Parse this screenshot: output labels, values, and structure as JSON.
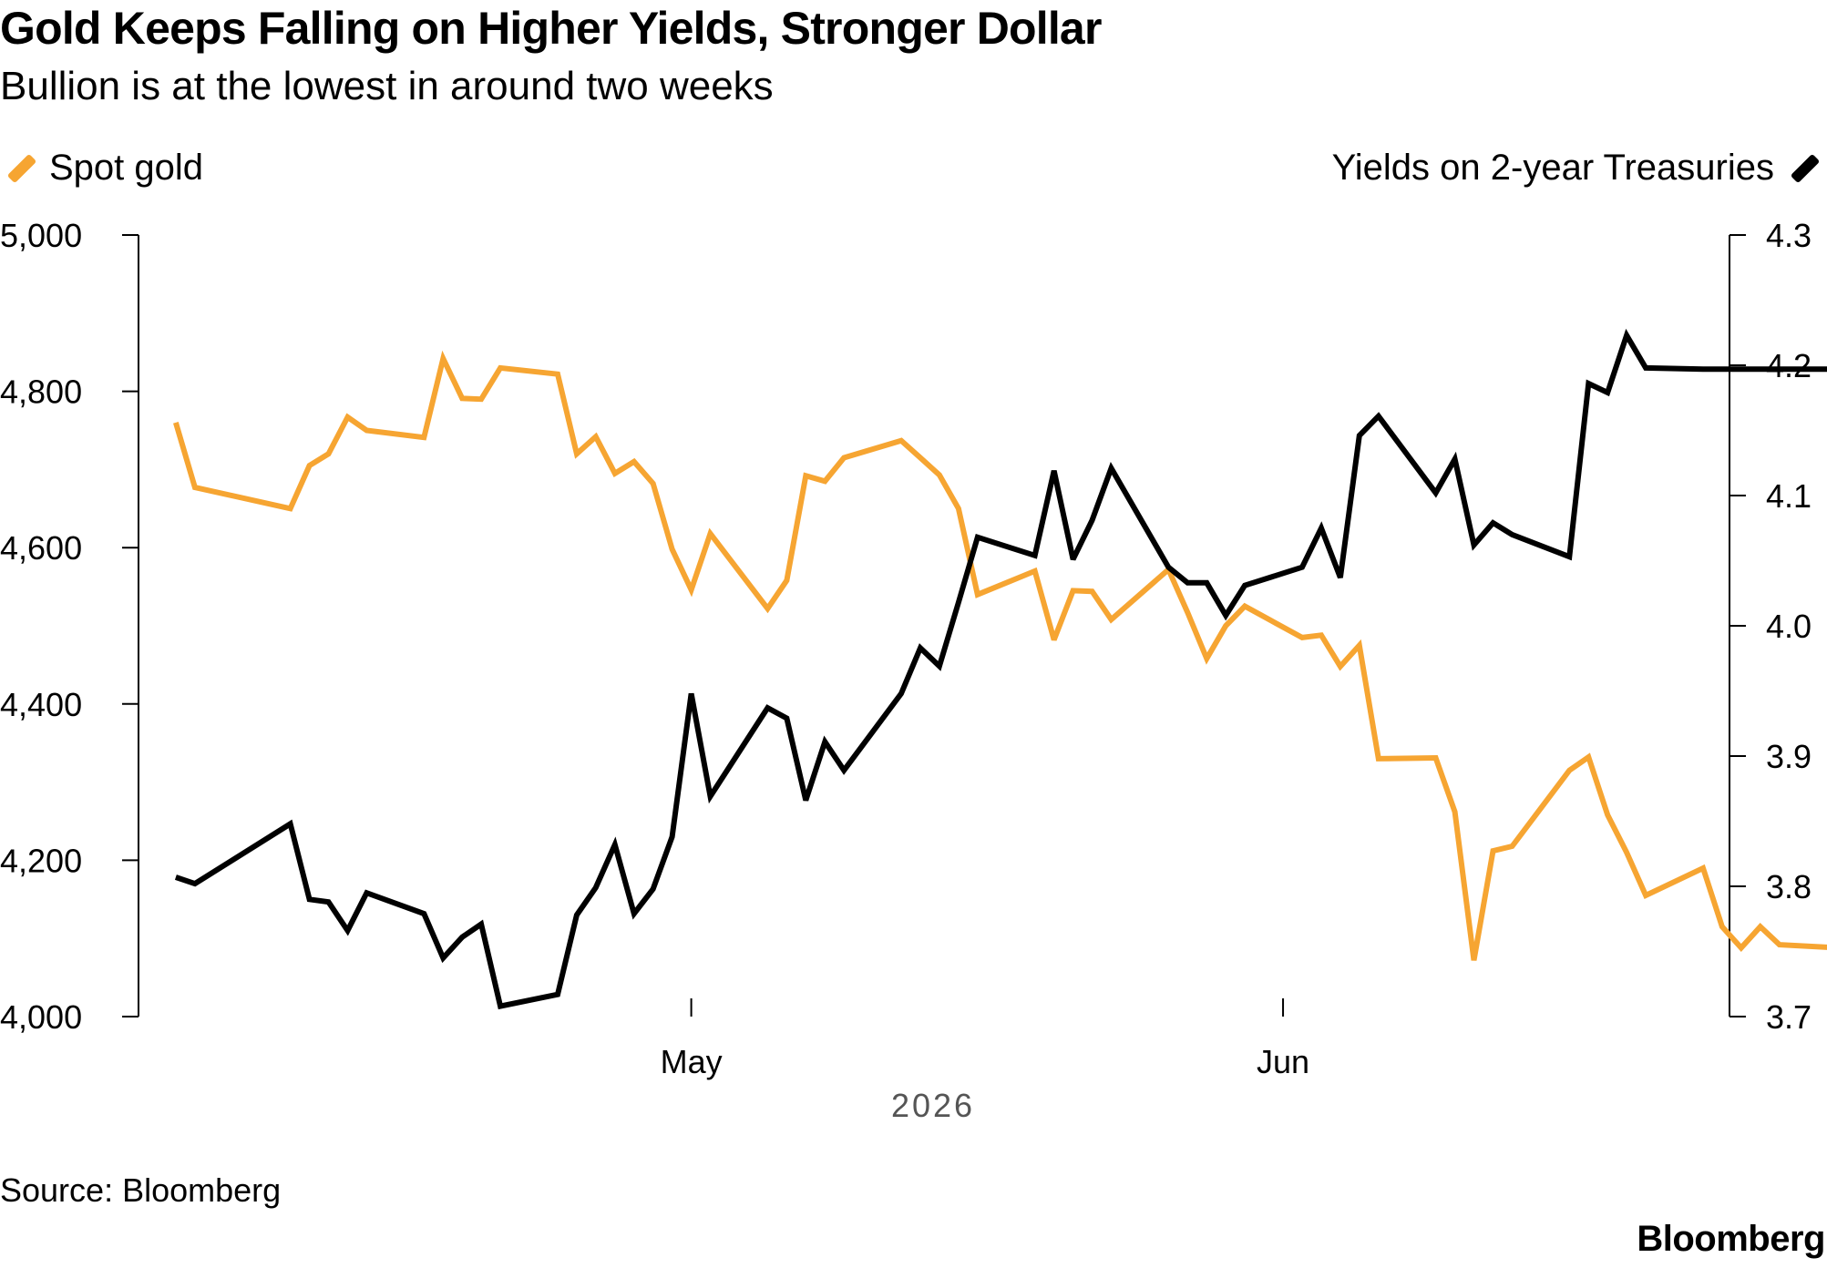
{
  "header": {
    "title": "Gold Keeps Falling on Higher Yields, Stronger Dollar",
    "subtitle": "Bullion is at the lowest in around two weeks"
  },
  "legend": {
    "left": "Spot gold",
    "right": "Yields on 2-year Treasuries"
  },
  "footer": {
    "source": "Source: Bloomberg",
    "brand": "Bloomberg"
  },
  "colors": {
    "gold": "#f6a532",
    "yield": "#000000",
    "axis": "#000000",
    "year_label": "#555555"
  },
  "chart_data": {
    "type": "line",
    "title": "Gold Keeps Falling on Higher Yields, Stronger Dollar",
    "subtitle": "Bullion is at the lowest in around two weeks",
    "x_label": "2026",
    "x_range": [
      "2026-04-03",
      "2026-07-02"
    ],
    "x_ticks": [
      {
        "date": "2026-05-01",
        "label": "May"
      },
      {
        "date": "2026-06-01",
        "label": "Jun"
      }
    ],
    "y_left": {
      "range": [
        4000,
        5000
      ],
      "ticks": [
        4000,
        4200,
        4400,
        4600,
        4800,
        5000
      ],
      "tick_labels": [
        "4,000",
        "4,200",
        "4,400",
        "4,600",
        "4,800",
        "5,000"
      ]
    },
    "y_right": {
      "range": [
        3.7,
        4.3
      ],
      "ticks": [
        3.7,
        3.8,
        3.9,
        4.0,
        4.1,
        4.2,
        4.3
      ],
      "tick_labels": [
        "3.7",
        "3.8",
        "3.9",
        "4.0",
        "4.1",
        "4.2",
        "4.3"
      ]
    },
    "grid": false,
    "legend_placement": "top",
    "series": [
      {
        "name": "Spot gold",
        "axis": "left",
        "x": [
          "2026-04-04",
          "2026-04-05",
          "2026-04-10",
          "2026-04-11",
          "2026-04-12",
          "2026-04-13",
          "2026-04-14",
          "2026-04-17",
          "2026-04-18",
          "2026-04-19",
          "2026-04-20",
          "2026-04-21",
          "2026-04-24",
          "2026-04-25",
          "2026-04-26",
          "2026-04-27",
          "2026-04-28",
          "2026-04-29",
          "2026-04-30",
          "2026-05-01",
          "2026-05-02",
          "2026-05-05",
          "2026-05-06",
          "2026-05-07",
          "2026-05-08",
          "2026-05-09",
          "2026-05-12",
          "2026-05-13",
          "2026-05-14",
          "2026-05-15",
          "2026-05-16",
          "2026-05-19",
          "2026-05-20",
          "2026-05-21",
          "2026-05-22",
          "2026-05-23",
          "2026-05-26",
          "2026-05-27",
          "2026-05-28",
          "2026-05-29",
          "2026-05-30",
          "2026-06-02",
          "2026-06-03",
          "2026-06-04",
          "2026-06-05",
          "2026-06-06",
          "2026-06-09",
          "2026-06-10",
          "2026-06-11",
          "2026-06-12",
          "2026-06-13",
          "2026-06-16",
          "2026-06-17",
          "2026-06-18",
          "2026-06-19",
          "2026-06-20",
          "2026-06-23",
          "2026-06-24",
          "2026-06-25",
          "2026-06-26",
          "2026-06-27",
          "2026-06-30",
          "2026-07-01",
          "2026-07-02"
        ],
        "y": [
          4760,
          4677,
          4650,
          4705,
          4720,
          4767,
          4750,
          4741,
          4842,
          4791,
          4790,
          4830,
          4822,
          4720,
          4742,
          4695,
          4710,
          4682,
          4598,
          4546,
          4618,
          4522,
          4558,
          4692,
          4685,
          4715,
          4737,
          4715,
          4693,
          4650,
          4540,
          4570,
          4482,
          4545,
          4544,
          4508,
          4572,
          4517,
          4458,
          4500,
          4525,
          4485,
          4488,
          4448,
          4475,
          4330,
          4331,
          4262,
          4072,
          4212,
          4218,
          4315,
          4332,
          4258,
          4210,
          4155,
          4190,
          4115,
          4088,
          4115,
          4092,
          4088,
          4088,
          4088
        ]
      },
      {
        "name": "Yields on 2-year Treasuries",
        "axis": "right",
        "x": [
          "2026-04-04",
          "2026-04-05",
          "2026-04-10",
          "2026-04-11",
          "2026-04-12",
          "2026-04-13",
          "2026-04-14",
          "2026-04-17",
          "2026-04-18",
          "2026-04-19",
          "2026-04-20",
          "2026-04-21",
          "2026-04-24",
          "2026-04-25",
          "2026-04-26",
          "2026-04-27",
          "2026-04-28",
          "2026-04-29",
          "2026-04-30",
          "2026-05-01",
          "2026-05-02",
          "2026-05-05",
          "2026-05-06",
          "2026-05-07",
          "2026-05-08",
          "2026-05-09",
          "2026-05-12",
          "2026-05-13",
          "2026-05-14",
          "2026-05-15",
          "2026-05-16",
          "2026-05-19",
          "2026-05-20",
          "2026-05-21",
          "2026-05-22",
          "2026-05-23",
          "2026-05-26",
          "2026-05-27",
          "2026-05-28",
          "2026-05-29",
          "2026-05-30",
          "2026-06-02",
          "2026-06-03",
          "2026-06-04",
          "2026-06-05",
          "2026-06-06",
          "2026-06-09",
          "2026-06-10",
          "2026-06-11",
          "2026-06-12",
          "2026-06-13",
          "2026-06-16",
          "2026-06-17",
          "2026-06-18",
          "2026-06-19",
          "2026-06-20",
          "2026-06-23",
          "2026-06-24",
          "2026-06-25",
          "2026-06-26",
          "2026-06-27",
          "2026-06-30",
          "2026-07-01",
          "2026-07-02"
        ],
        "y": [
          3.807,
          3.802,
          3.848,
          3.79,
          3.788,
          3.766,
          3.795,
          3.779,
          3.745,
          3.761,
          3.771,
          3.708,
          3.717,
          3.778,
          3.799,
          3.832,
          3.779,
          3.798,
          3.838,
          3.948,
          3.869,
          3.937,
          3.929,
          3.866,
          3.911,
          3.889,
          3.948,
          3.983,
          3.969,
          4.018,
          4.068,
          4.054,
          4.119,
          4.051,
          4.081,
          4.121,
          4.045,
          4.033,
          4.033,
          4.008,
          4.031,
          4.045,
          4.075,
          4.037,
          4.146,
          4.161,
          4.102,
          4.128,
          4.062,
          4.079,
          4.07,
          4.053,
          4.186,
          4.179,
          4.223,
          4.198,
          4.197,
          4.197,
          4.197,
          4.197,
          4.197,
          4.197,
          4.197,
          4.197
        ]
      }
    ]
  }
}
